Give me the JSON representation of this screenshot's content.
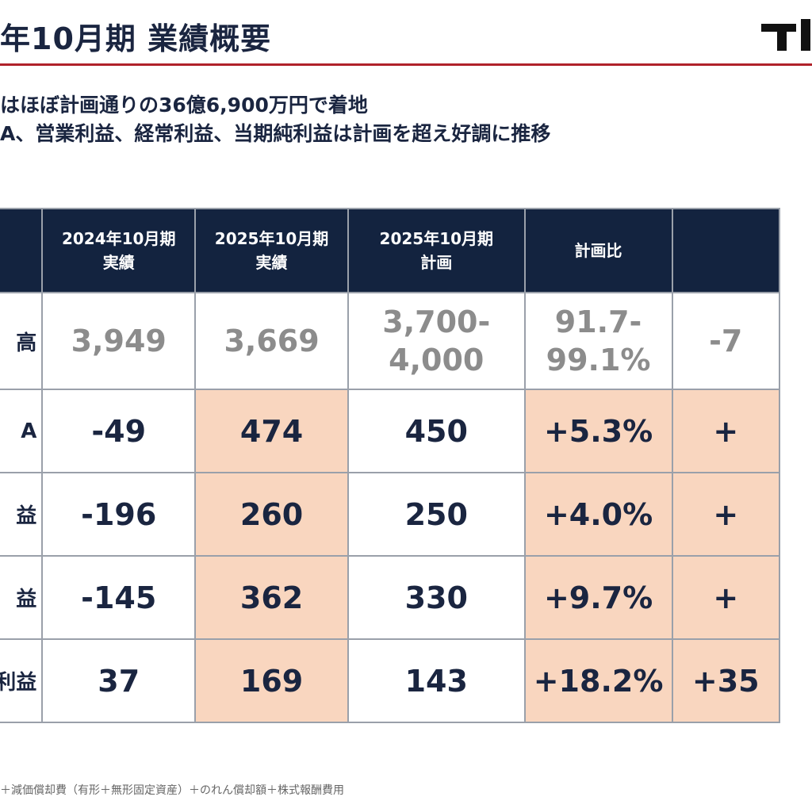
{
  "header": {
    "title": "年10月期 業績概要",
    "logo_icon": "company-logo"
  },
  "bullets": [
    "はほぼ計画通りの36億6,900万円で着地",
    "A、営業利益、経常利益、当期純利益は計画を超え好調に推移"
  ],
  "unit_note": "（",
  "table": {
    "columns": [
      "",
      "2024年10月期\n実績",
      "2025年10月期\n実績",
      "2025年10月期\n計画",
      "計画比",
      ""
    ],
    "rows": [
      {
        "label": "高",
        "values": [
          "3,949",
          "3,669",
          "3,700-\n4,000",
          "91.7-\n99.1%",
          "-7"
        ]
      },
      {
        "label": "A",
        "values": [
          "-49",
          "474",
          "450",
          "+5.3%",
          "+"
        ]
      },
      {
        "label": "益",
        "values": [
          "-196",
          "260",
          "250",
          "+4.0%",
          "+"
        ]
      },
      {
        "label": "益",
        "values": [
          "-145",
          "362",
          "330",
          "+9.7%",
          "+"
        ]
      },
      {
        "label": "利益",
        "values": [
          "37",
          "169",
          "143",
          "+18.2%",
          "+35"
        ]
      }
    ]
  },
  "footnote": "＋減価償却費（有形＋無形固定資産）＋のれん償却額＋株式報酬費用",
  "colors": {
    "header_bg": "#13233f",
    "highlight": "#f9d6bf",
    "rule": "#b0222a",
    "text": "#1a2540",
    "muted_text": "#8c8c8c"
  }
}
